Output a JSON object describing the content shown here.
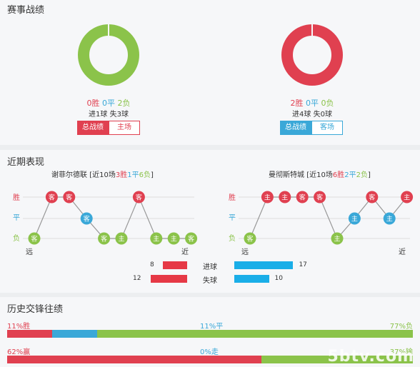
{
  "section1": {
    "title": "赛事战绩",
    "left": {
      "wins": "0胜",
      "draws": "0平",
      "losses": "2负",
      "scored": "进1球",
      "conceded": "失3球",
      "tab_active": "总战绩",
      "tab_inactive": "主场",
      "win_fraction": 0,
      "draw_fraction": 0,
      "loss_fraction": 1,
      "color": "#8bc34a"
    },
    "right": {
      "wins": "2胜",
      "draws": "0平",
      "losses": "0负",
      "scored": "进4球",
      "conceded": "失0球",
      "tab_active": "总战绩",
      "tab_inactive": "客场",
      "win_fraction": 1,
      "draw_fraction": 0,
      "loss_fraction": 0,
      "color": "#e04050"
    }
  },
  "section2": {
    "title": "近期表现",
    "left": {
      "team": "谢菲尔德联",
      "summary_prefix": "[近10场",
      "w": "3胜",
      "d": "1平",
      "l": "6负",
      "summary_suffix": "]",
      "results": [
        "L",
        "W",
        "W",
        "D",
        "L",
        "L",
        "W",
        "L",
        "L",
        "L"
      ],
      "venues": [
        "客",
        "客",
        "客",
        "客",
        "客",
        "主",
        "客",
        "主",
        "主",
        "客"
      ],
      "far": "远",
      "near": "近"
    },
    "right": {
      "team": "曼彻斯特城",
      "summary_prefix": "[近10场",
      "w": "6胜",
      "d": "2平",
      "l": "2负",
      "summary_suffix": "]",
      "results": [
        "L",
        "W",
        "W",
        "W",
        "W",
        "L",
        "D",
        "W",
        "D",
        "W"
      ],
      "venues": [
        "客",
        "主",
        "主",
        "客",
        "客",
        "主",
        "主",
        "客",
        "主",
        "主"
      ],
      "far": "远",
      "near": "近"
    },
    "labels": {
      "win": "胜",
      "draw": "平",
      "loss": "负"
    },
    "goals": {
      "label": "进球",
      "left": "8",
      "right": "17",
      "left_value": 8,
      "right_value": 17
    },
    "conceded": {
      "label": "失球",
      "left": "12",
      "right": "10",
      "left_value": 12,
      "right_value": 10
    }
  },
  "section3": {
    "title": "历史交锋往绩",
    "row1": {
      "win": "11%胜",
      "draw": "11%平",
      "loss": "77%负",
      "win_pct": 11,
      "draw_pct": 11,
      "loss_pct": 77
    },
    "row2": {
      "left": "62%赢",
      "mid": "0%走",
      "right": "37%输",
      "left_pct": 62,
      "mid_pct": 0,
      "right_pct": 37
    }
  },
  "colors": {
    "win": "#e04050",
    "draw": "#3aa8d8",
    "loss": "#8bc34a",
    "grid": "#dddddd"
  },
  "watermark": "5btv.com"
}
